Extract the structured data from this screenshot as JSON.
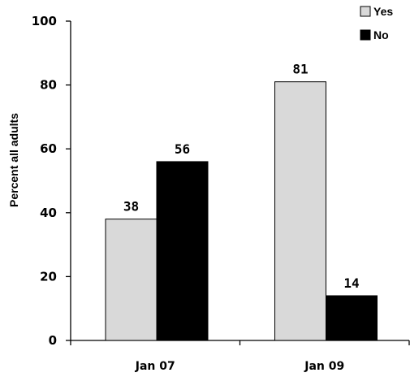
{
  "chart_data": {
    "type": "bar",
    "categories": [
      "Jan 07",
      "Jan 09"
    ],
    "series": [
      {
        "name": "Yes",
        "values": [
          38,
          81
        ],
        "color": "#d9d9d9"
      },
      {
        "name": "No",
        "values": [
          56,
          14
        ],
        "color": "#000000"
      }
    ],
    "ylabel": "Percent all adults",
    "ylim": [
      0,
      100
    ],
    "yticks": [
      0,
      20,
      40,
      60,
      80,
      100
    ],
    "legend_position": "top-right",
    "grid": false,
    "data_labels": true
  }
}
